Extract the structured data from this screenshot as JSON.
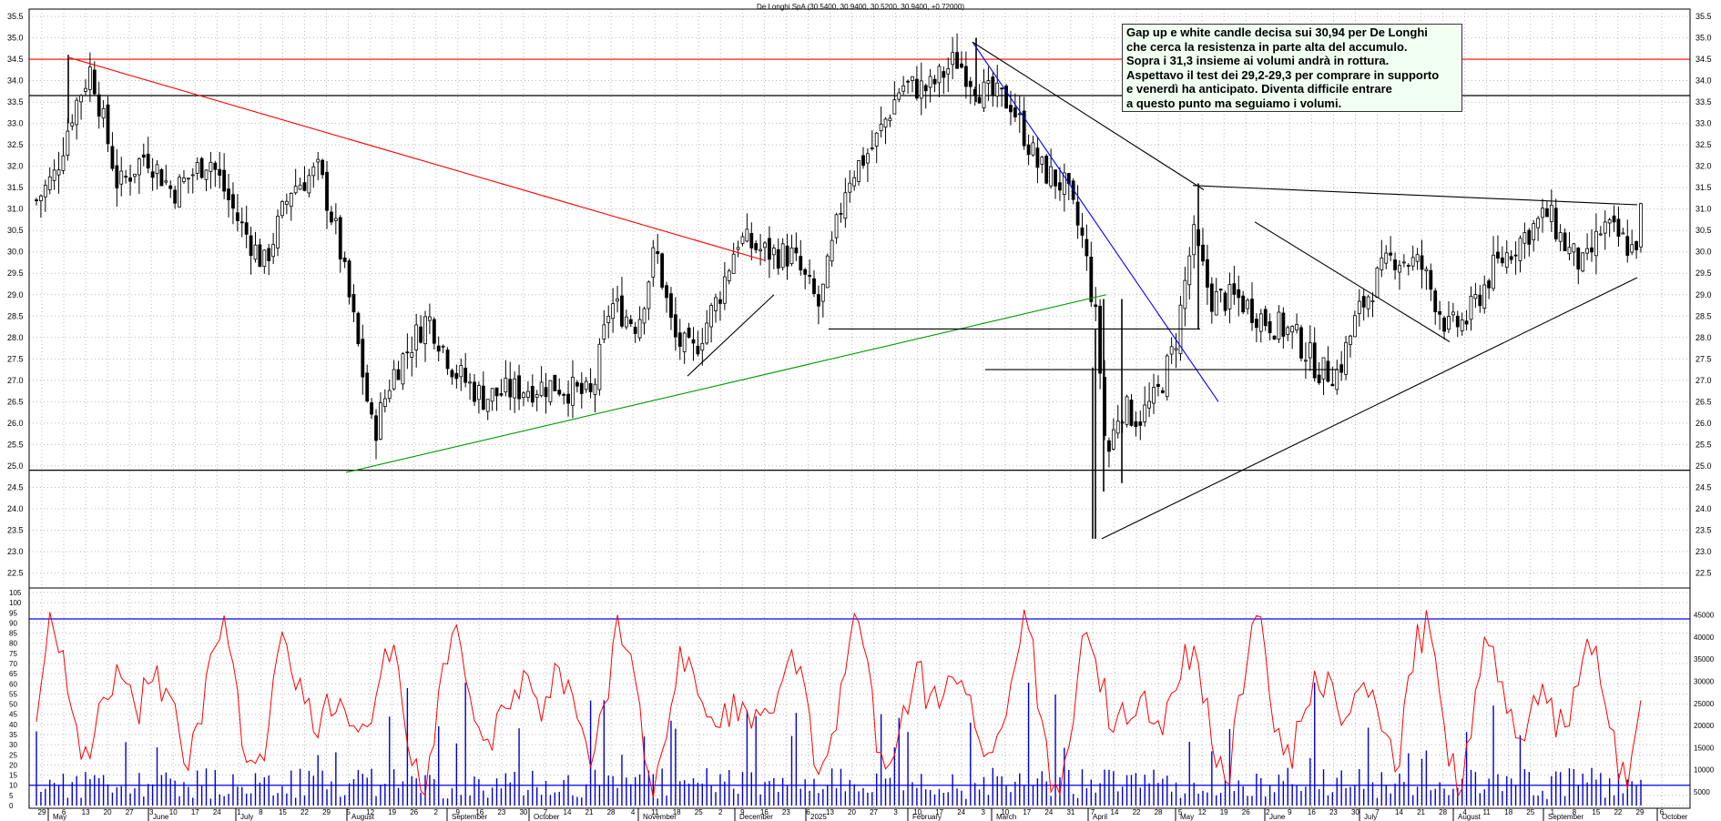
{
  "header": "De Longhi SpA (30.5400, 30.9400, 30.5200, 30.9400, +0.72000)",
  "note": [
    "Gap up e white candle decisa sui 30,94 per De Longhi",
    "che cerca la resistenza in parte alta del accumulo.",
    "Sopra i 31,3 insieme ai volumi andrà in rottura.",
    "Aspettavo il test dei 29,2-29,3 per comprare in supporto",
    "e venerdì ha anticipato. Diventa difficile entrare",
    "a questo punto ma seguiamo i volumi."
  ],
  "chart_data": {
    "type": "candlestick",
    "price_axis": {
      "min": 22.5,
      "max": 35.5,
      "step": 0.5,
      "ticks": [
        "22.5",
        "23.0",
        "23.5",
        "24.0",
        "24.5",
        "25.0",
        "25.5",
        "26.0",
        "26.5",
        "27.0",
        "27.5",
        "28.0",
        "28.5",
        "29.0",
        "29.5",
        "30.0",
        "30.5",
        "31.0",
        "31.5",
        "32.0",
        "32.5",
        "33.0",
        "33.5",
        "34.0",
        "34.5",
        "35.0",
        "35.5"
      ]
    },
    "osc_axis": {
      "min": 0,
      "max": 105,
      "ticks": [
        "0",
        "5",
        "10",
        "15",
        "20",
        "25",
        "30",
        "35",
        "40",
        "45",
        "50",
        "55",
        "60",
        "65",
        "70",
        "75",
        "80",
        "85",
        "90",
        "95",
        "100",
        "105"
      ]
    },
    "volume_axis": {
      "ticks": [
        "5000",
        "10000",
        "15000",
        "20000",
        "25000",
        "30000",
        "35000",
        "40000",
        "45000"
      ]
    },
    "months": [
      "May",
      "June",
      "July",
      "August",
      "September",
      "October",
      "November",
      "December",
      "2025",
      "February",
      "March",
      "April",
      "May",
      "June",
      "July",
      "August",
      "September",
      "October"
    ],
    "day_ticks": [
      "29",
      "6",
      "13",
      "20",
      "27",
      "3",
      "10",
      "17",
      "24",
      "1",
      "8",
      "15",
      "22",
      "29",
      "5",
      "12",
      "19",
      "26",
      "2",
      "9",
      "16",
      "23",
      "30",
      "7",
      "14",
      "21",
      "28",
      "4",
      "11",
      "18",
      "25",
      "2",
      "9",
      "16",
      "23",
      "6",
      "13",
      "20",
      "27",
      "3",
      "10",
      "17",
      "24",
      "3",
      "10",
      "17",
      "24",
      "31",
      "7",
      "14",
      "22",
      "28",
      "5",
      "12",
      "19",
      "26",
      "2",
      "9",
      "16",
      "23",
      "30",
      "7",
      "14",
      "21",
      "28",
      "4",
      "11",
      "18",
      "25",
      "1",
      "8",
      "15",
      "22",
      "29",
      "6"
    ],
    "horizontal_levels": [
      {
        "price": 34.5,
        "color": "#ff0000"
      },
      {
        "price": 33.65,
        "color": "#000000"
      },
      {
        "price": 24.9,
        "color": "#000000"
      }
    ],
    "oscillator_levels": [
      10,
      92
    ],
    "key_points": [
      {
        "date": "2024-05-13",
        "high": 34.6
      },
      {
        "date": "2024-08-05",
        "low": 24.9
      },
      {
        "date": "2024-11-11",
        "high": 30.5
      },
      {
        "date": "2025-02-24",
        "high": 35.0
      },
      {
        "date": "2025-04-07",
        "low": 23.3
      },
      {
        "date": "2025-05-12",
        "high": 31.6
      },
      {
        "date": "2025-09-26",
        "close": 30.94
      }
    ],
    "last": {
      "open": 30.54,
      "high": 30.94,
      "low": 30.52,
      "close": 30.94,
      "change": 0.72
    }
  },
  "colors": {
    "candle": "#000000",
    "red_line": "#ff0000",
    "green_line": "#009900",
    "blue_line": "#0000ff",
    "oscillator": "#ff0000",
    "volume": "#0000cc",
    "grid": "#bbbbbb",
    "note_bg": "#f0fff0"
  }
}
